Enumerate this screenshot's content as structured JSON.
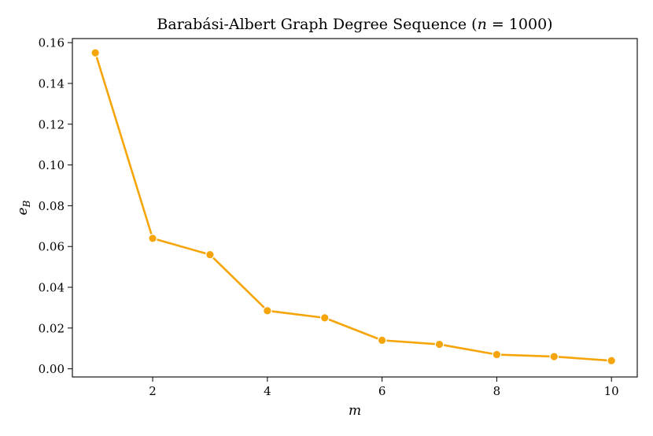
{
  "chart_data": {
    "type": "line",
    "title": "Barabási-Albert Graph Degree Sequence (n = 1000)",
    "xlabel": "m",
    "ylabel": "e_B",
    "xlim": [
      0.6,
      10.45
    ],
    "ylim": [
      -0.004,
      0.162
    ],
    "xticks": [
      2,
      4,
      6,
      8,
      10
    ],
    "yticks": [
      0.0,
      0.02,
      0.04,
      0.06,
      0.08,
      0.1,
      0.12,
      0.14,
      0.16
    ],
    "ytick_labels": [
      "0.00",
      "0.02",
      "0.04",
      "0.06",
      "0.08",
      "0.10",
      "0.12",
      "0.14",
      "0.16"
    ],
    "grid": false,
    "series": [
      {
        "color": "#f5a50a",
        "x": [
          1,
          2,
          3,
          4,
          5,
          6,
          7,
          8,
          9,
          10
        ],
        "y": [
          0.155,
          0.064,
          0.056,
          0.0285,
          0.025,
          0.014,
          0.012,
          0.007,
          0.006,
          0.004
        ]
      }
    ]
  }
}
